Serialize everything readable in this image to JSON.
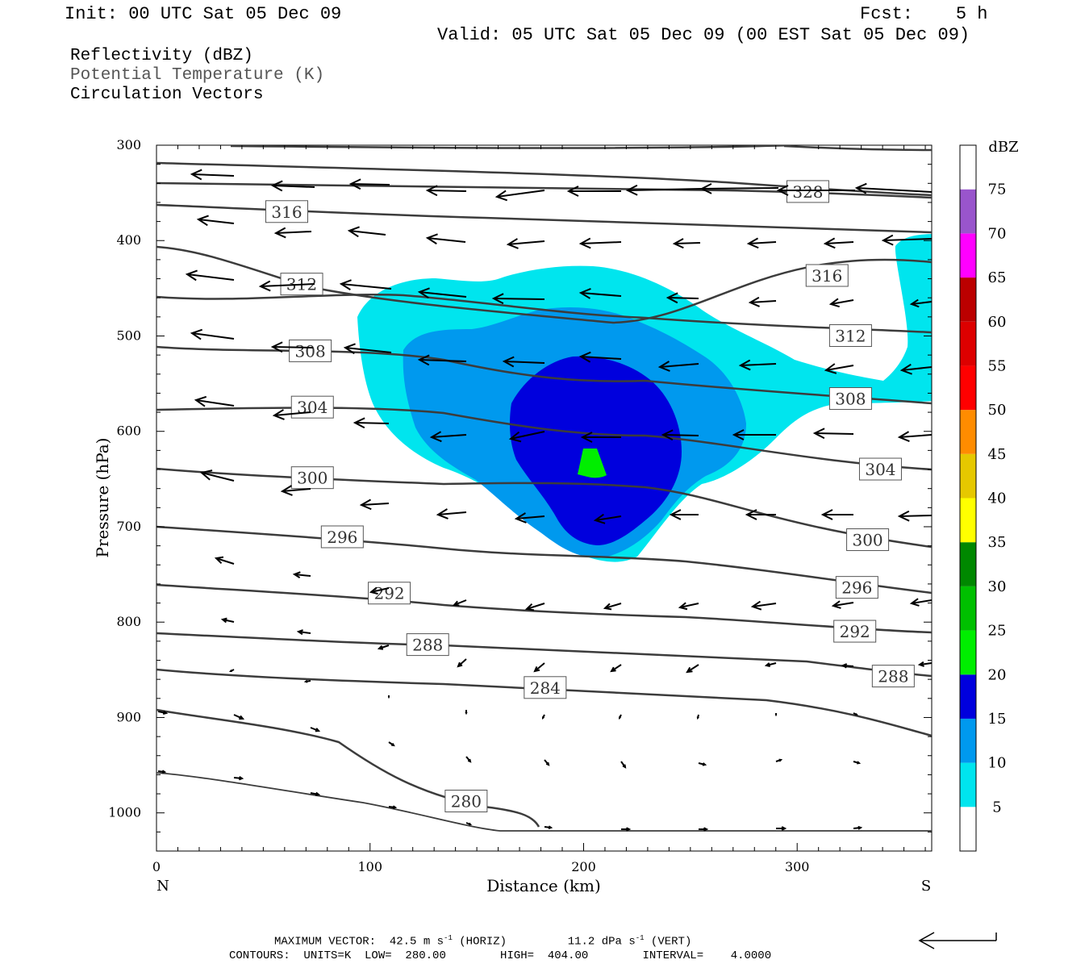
{
  "header": {
    "init": "Init: 00 UTC Sat 05 Dec 09",
    "fcst": "Fcst:    5 h",
    "valid": "Valid: 05 UTC Sat 05 Dec 09 (00 EST Sat 05 Dec 09)",
    "field1": "Reflectivity (dBZ)",
    "field2": "Potential Temperature (K)",
    "field3": "Circulation Vectors"
  },
  "footer": {
    "max_vector_prefix": "MAXIMUM VECTOR:  42.5 m s",
    "horiz_suffix": " (HORIZ)",
    "vert_prefix": "11.2 dPa s",
    "vert_suffix": " (VERT)",
    "exp": "-1",
    "contours": "CONTOURS:  UNITS=K  LOW=  280.00        HIGH=  404.00        INTERVAL=    4.0000"
  },
  "colors": {
    "dbz5": "#00e5ee",
    "dbz10": "#0099ee",
    "dbz15": "#0000dd",
    "dbz20": "#00ee00",
    "contour": "#3c3c3c"
  },
  "chart_data": {
    "type": "contour",
    "xlabel": "Distance (km)",
    "ylabel": "Pressure (hPa)",
    "xlim": [
      0,
      363
    ],
    "ylim": [
      1040,
      300
    ],
    "x_ticks": [
      0,
      100,
      200,
      300
    ],
    "y_ticks": [
      300,
      400,
      500,
      600,
      700,
      800,
      900,
      1000
    ],
    "x_end_labels": {
      "left": "N",
      "right": "S"
    },
    "colorbar": {
      "title": "dBZ",
      "levels": [
        5,
        10,
        15,
        20,
        25,
        30,
        35,
        40,
        45,
        50,
        55,
        60,
        65,
        70,
        75
      ],
      "colors": [
        "#00e5ee",
        "#0099ee",
        "#0000dd",
        "#00ee00",
        "#00c000",
        "#008800",
        "#ffff00",
        "#e6c800",
        "#ff8c00",
        "#ff0000",
        "#dd0000",
        "#bb0000",
        "#ff00ff",
        "#9955cc",
        "#ffffff"
      ]
    },
    "contour_labels": [
      {
        "text": "328",
        "x": 305,
        "y": 349
      },
      {
        "text": "316",
        "x": 61,
        "y": 370
      },
      {
        "text": "316",
        "x": 314,
        "y": 437
      },
      {
        "text": "312",
        "x": 68,
        "y": 446
      },
      {
        "text": "312",
        "x": 325,
        "y": 500
      },
      {
        "text": "308",
        "x": 72,
        "y": 516
      },
      {
        "text": "308",
        "x": 325,
        "y": 566
      },
      {
        "text": "304",
        "x": 73,
        "y": 575
      },
      {
        "text": "304",
        "x": 339,
        "y": 640
      },
      {
        "text": "300",
        "x": 73,
        "y": 649
      },
      {
        "text": "300",
        "x": 333,
        "y": 714
      },
      {
        "text": "296",
        "x": 87,
        "y": 711
      },
      {
        "text": "296",
        "x": 328,
        "y": 764
      },
      {
        "text": "292",
        "x": 109,
        "y": 770
      },
      {
        "text": "292",
        "x": 327,
        "y": 810
      },
      {
        "text": "288",
        "x": 127,
        "y": 824
      },
      {
        "text": "288",
        "x": 345,
        "y": 857
      },
      {
        "text": "284",
        "x": 182,
        "y": 869
      },
      {
        "text": "280",
        "x": 145,
        "y": 988
      }
    ],
    "footer_vector_key": "42.5 m/s horizontal, 11.2 dPa/s vertical"
  }
}
